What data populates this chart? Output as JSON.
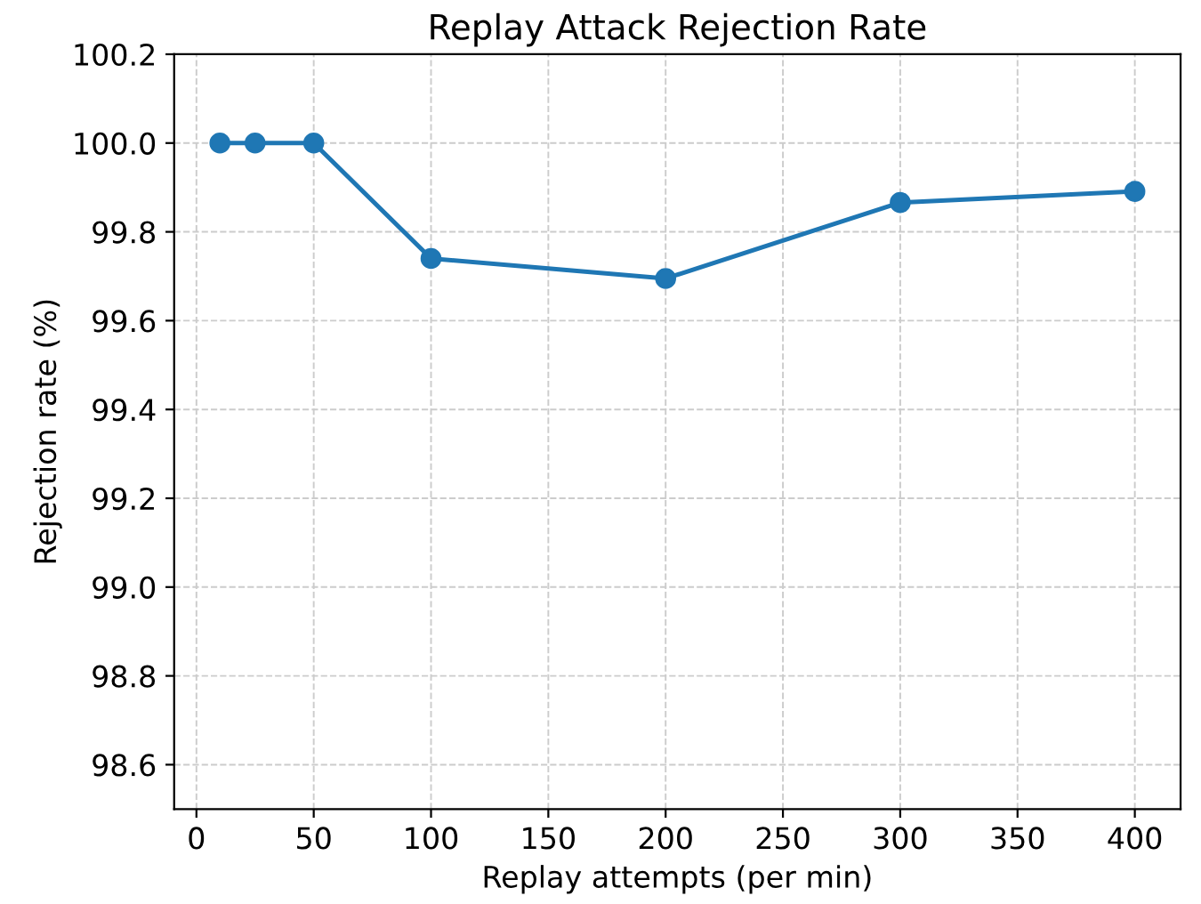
{
  "chart_data": {
    "type": "line",
    "title": "Replay Attack Rejection Rate",
    "xlabel": "Replay attempts (per min)",
    "ylabel": "Rejection rate (%)",
    "x": [
      10,
      25,
      50,
      100,
      200,
      300,
      400
    ],
    "series": [
      {
        "color": "#1f77b4",
        "values": [
          100.0,
          100.0,
          100.0,
          99.74,
          99.695,
          99.866,
          99.891
        ]
      }
    ],
    "xlim": [
      -9.5,
      419.5
    ],
    "xticks": [
      0,
      50,
      100,
      150,
      200,
      250,
      300,
      350,
      400
    ],
    "ylim": [
      98.5,
      100.2
    ],
    "yticks": [
      {
        "value": 98.6,
        "label": "98.6"
      },
      {
        "value": 98.8,
        "label": "98.8"
      },
      {
        "value": 99.0,
        "label": "99.0"
      },
      {
        "value": 99.2,
        "label": "99.2"
      },
      {
        "value": 99.4,
        "label": "99.4"
      },
      {
        "value": 99.6,
        "label": "99.6"
      },
      {
        "value": 99.8,
        "label": "99.8"
      },
      {
        "value": 100.0,
        "label": "100.0"
      },
      {
        "value": 100.2,
        "label": "100.2"
      }
    ],
    "grid": true,
    "marker": "circle",
    "line_style": "solid"
  }
}
